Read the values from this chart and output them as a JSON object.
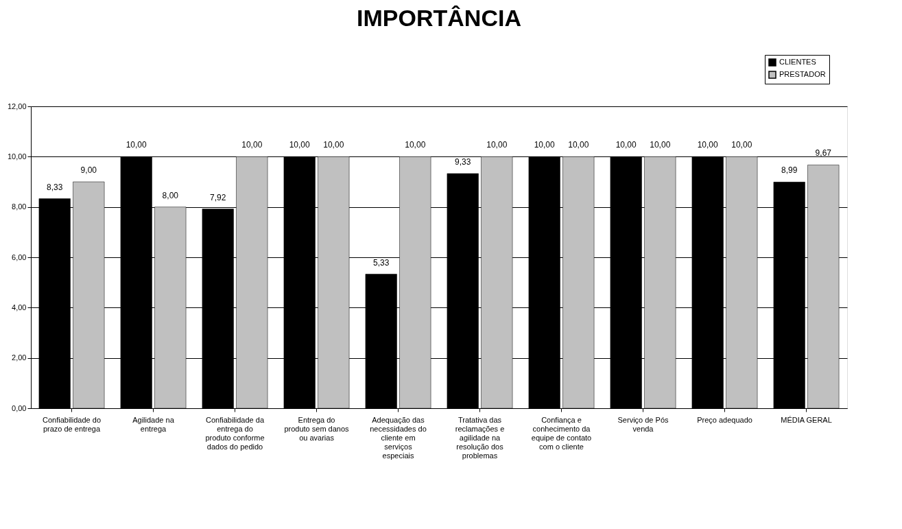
{
  "chart_data": {
    "type": "bar",
    "title": "IMPORTÂNCIA",
    "categories": [
      "Confiabilidade do prazo de entrega",
      "Agilidade na entrega",
      "Confiabilidade da entrega do produto conforme dados do pedido",
      "Entrega do produto sem danos ou avarias",
      "Adequação das necessidades do cliente em serviços especiais",
      "Tratativa das reclamações e agilidade na resolução dos problemas",
      "Confiança e conhecimento da equipe de contato com o cliente",
      "Serviço de Pós venda",
      "Preço adequado",
      "MÉDIA GERAL"
    ],
    "series": [
      {
        "name": "CLIENTES",
        "color": "#000000",
        "values": [
          8.33,
          10.0,
          7.92,
          10.0,
          5.33,
          9.33,
          10.0,
          10.0,
          10.0,
          8.99
        ],
        "value_labels": [
          "8,33",
          "10,00",
          "7,92",
          "10,00",
          "5,33",
          "9,33",
          "10,00",
          "10,00",
          "10,00",
          "8,99"
        ]
      },
      {
        "name": "PRESTADOR",
        "color": "#c0c0c0",
        "values": [
          9.0,
          8.0,
          10.0,
          10.0,
          10.0,
          10.0,
          10.0,
          10.0,
          10.0,
          9.67
        ],
        "value_labels": [
          "9,00",
          "8,00",
          "10,00",
          "10,00",
          "10,00",
          "10,00",
          "10,00",
          "10,00",
          "10,00",
          "9,67"
        ]
      }
    ],
    "ylim": [
      0,
      12
    ],
    "yticks": [
      {
        "value": 0,
        "label": "0,00"
      },
      {
        "value": 2,
        "label": "2,00"
      },
      {
        "value": 4,
        "label": "4,00"
      },
      {
        "value": 6,
        "label": "6,00"
      },
      {
        "value": 8,
        "label": "8,00"
      },
      {
        "value": 10,
        "label": "10,00"
      },
      {
        "value": 12,
        "label": "12,00"
      }
    ],
    "grid": "y",
    "legend": "top right"
  }
}
